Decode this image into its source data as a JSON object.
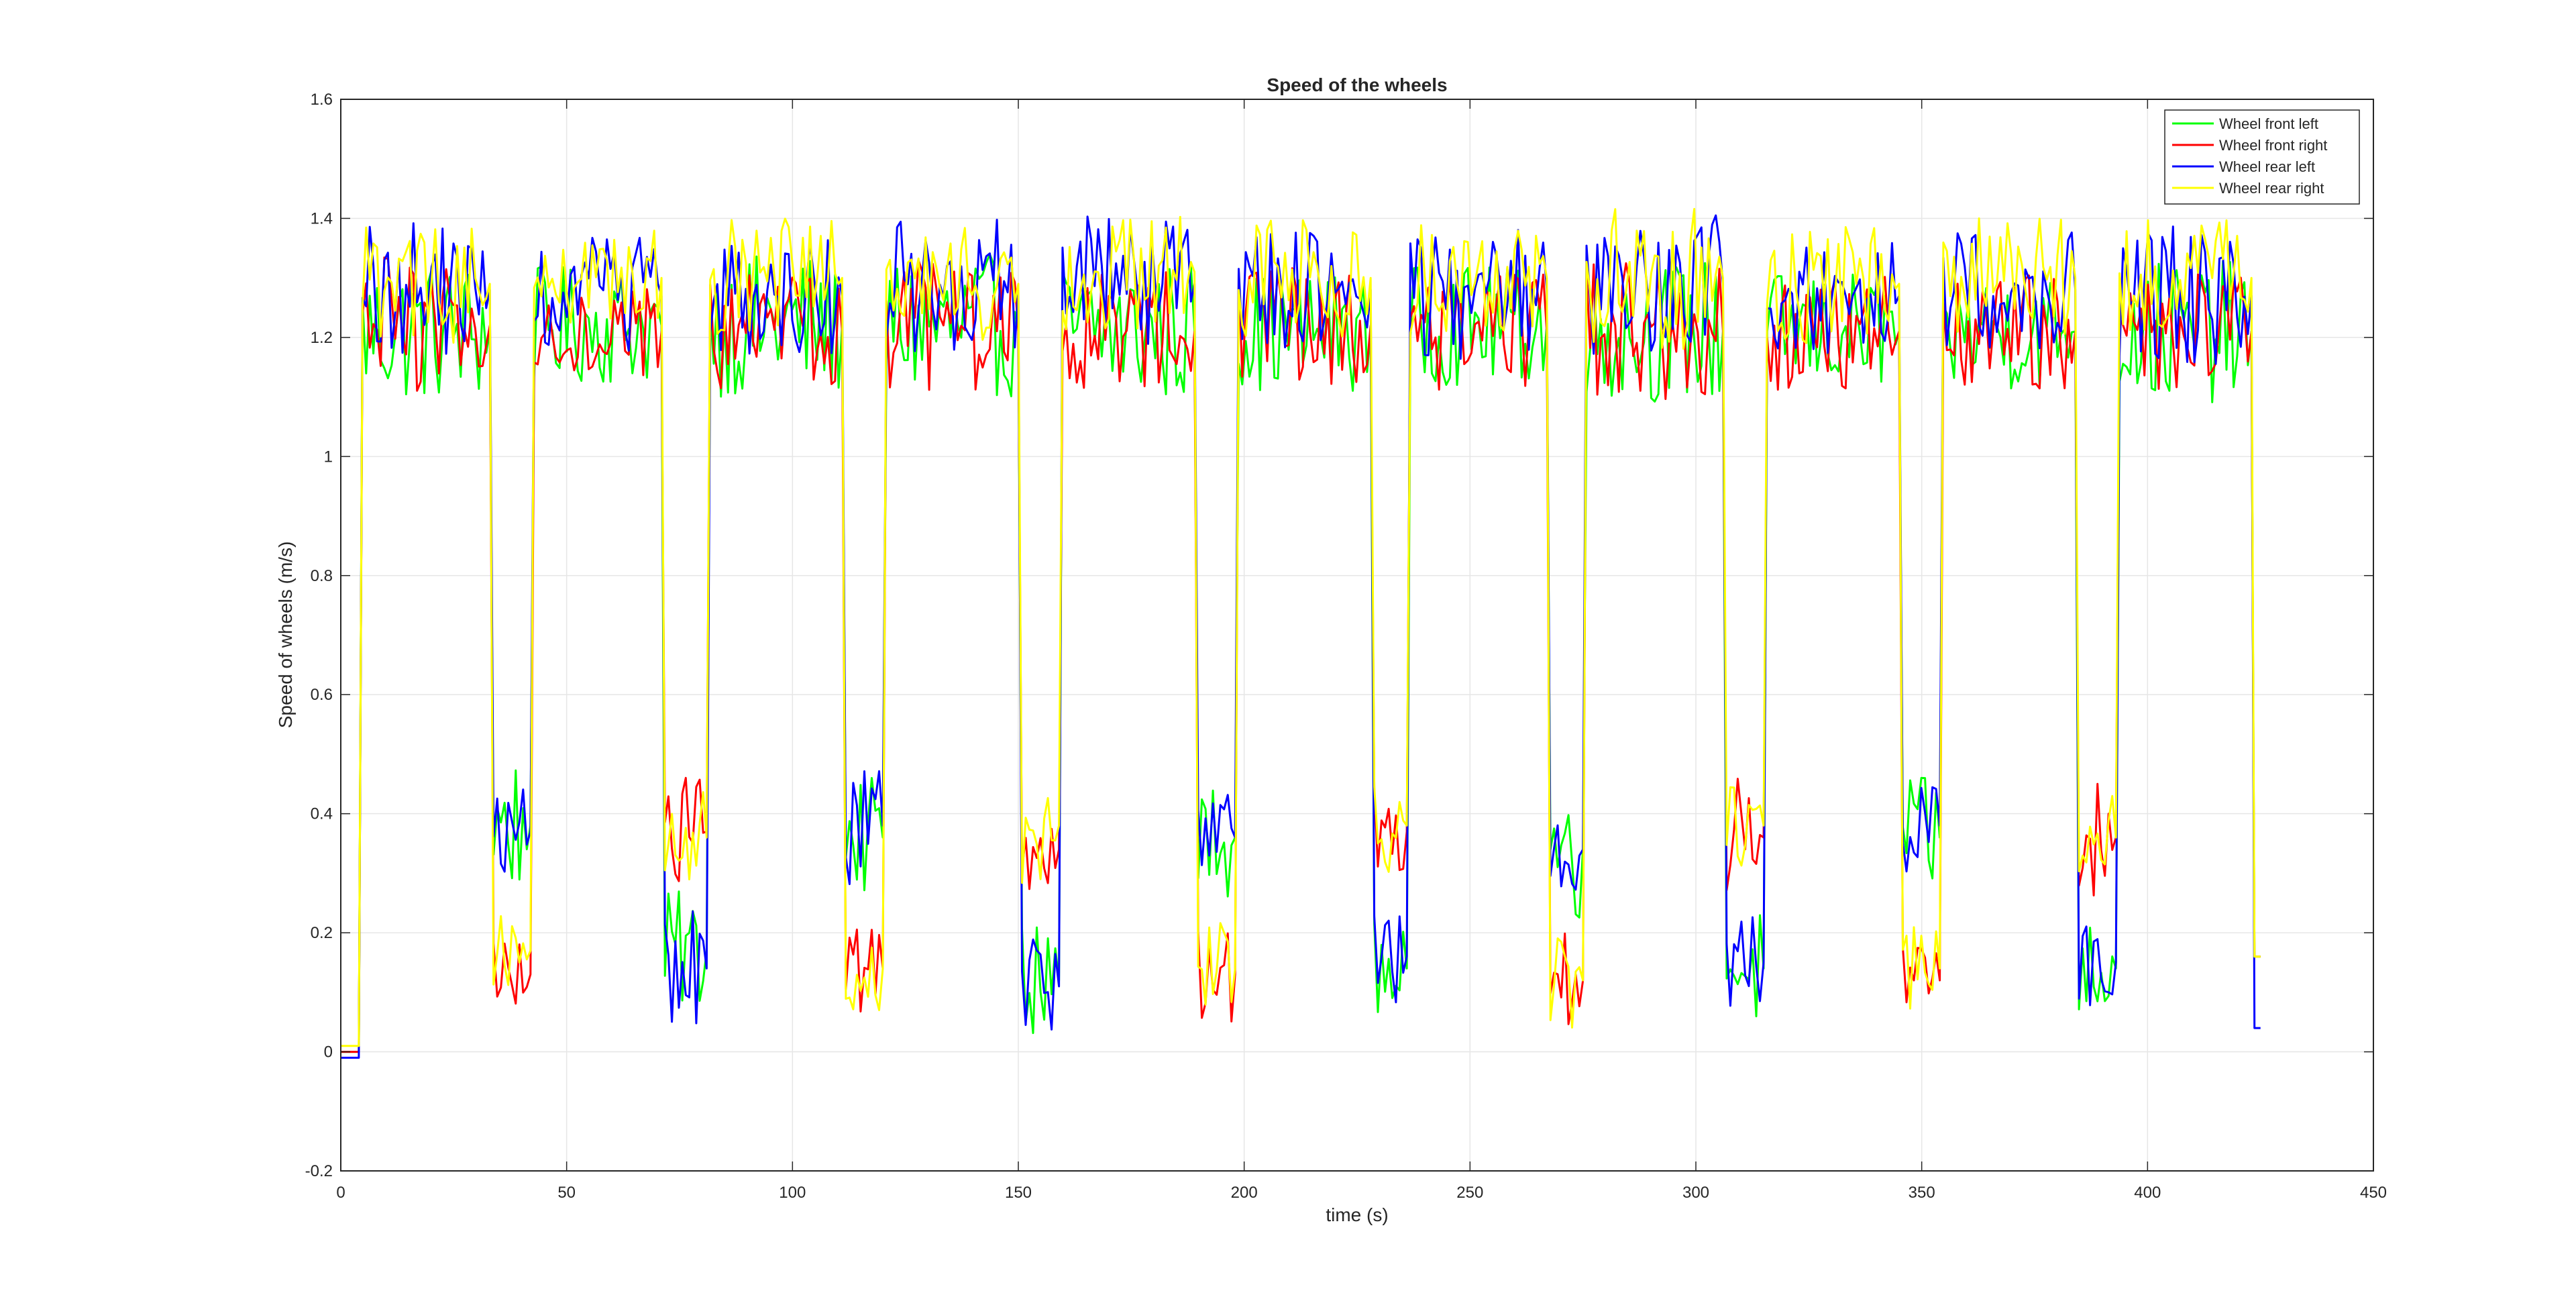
{
  "figure": {
    "background": "#ffffff"
  },
  "chart_data": {
    "type": "line",
    "title": "Speed of the wheels",
    "xlabel": "time (s)",
    "ylabel": "Speed of wheels (m/s)",
    "xlim": [
      0,
      450
    ],
    "ylim": [
      -0.2,
      1.6
    ],
    "xticks": [
      0,
      50,
      100,
      150,
      200,
      250,
      300,
      350,
      400,
      450
    ],
    "yticks": [
      -0.2,
      0,
      0.2,
      0.4,
      0.6,
      0.8,
      1,
      1.2,
      1.4,
      1.6
    ],
    "xtick_labels": [
      "0",
      "50",
      "100",
      "150",
      "200",
      "250",
      "300",
      "350",
      "400",
      "450"
    ],
    "ytick_labels": [
      "-0.2",
      "0",
      "0.2",
      "0.4",
      "0.6",
      "0.8",
      "1",
      "1.2",
      "1.4",
      "1.6"
    ],
    "grid": true,
    "legend_position": "top-right",
    "series": [
      {
        "name": "Wheel front left",
        "color": "#00ff00",
        "segments": [
          {
            "t0": 0,
            "t1": 4,
            "mean": 0.0,
            "amp": 0.0
          },
          {
            "t0": 4,
            "t1": 33,
            "mean": 1.21,
            "amp": 0.12
          },
          {
            "t0": 33,
            "t1": 42,
            "mean": 0.38,
            "amp": 0.12
          },
          {
            "t0": 42,
            "t1": 71,
            "mean": 1.22,
            "amp": 0.1
          },
          {
            "t0": 71,
            "t1": 81,
            "mean": 0.17,
            "amp": 0.1
          },
          {
            "t0": 81,
            "t1": 111,
            "mean": 1.22,
            "amp": 0.12
          },
          {
            "t0": 111,
            "t1": 120,
            "mean": 0.36,
            "amp": 0.1
          },
          {
            "t0": 120,
            "t1": 150,
            "mean": 1.22,
            "amp": 0.12
          },
          {
            "t0": 150,
            "t1": 159,
            "mean": 0.12,
            "amp": 0.1
          },
          {
            "t0": 159,
            "t1": 189,
            "mean": 1.21,
            "amp": 0.12
          },
          {
            "t0": 189,
            "t1": 198,
            "mean": 0.36,
            "amp": 0.1
          },
          {
            "t0": 198,
            "t1": 228,
            "mean": 1.21,
            "amp": 0.1
          },
          {
            "t0": 228,
            "t1": 236,
            "mean": 0.14,
            "amp": 0.08
          },
          {
            "t0": 236,
            "t1": 267,
            "mean": 1.22,
            "amp": 0.1
          },
          {
            "t0": 267,
            "t1": 275,
            "mean": 0.34,
            "amp": 0.12
          },
          {
            "t0": 275,
            "t1": 306,
            "mean": 1.21,
            "amp": 0.12
          },
          {
            "t0": 306,
            "t1": 315,
            "mean": 0.14,
            "amp": 0.1
          },
          {
            "t0": 315,
            "t1": 345,
            "mean": 1.21,
            "amp": 0.1
          },
          {
            "t0": 345,
            "t1": 354,
            "mean": 0.36,
            "amp": 0.1
          },
          {
            "t0": 354,
            "t1": 384,
            "mean": 1.21,
            "amp": 0.1
          },
          {
            "t0": 384,
            "t1": 393,
            "mean": 0.14,
            "amp": 0.08
          },
          {
            "t0": 393,
            "t1": 423,
            "mean": 1.21,
            "amp": 0.12
          },
          {
            "t0": 423,
            "t1": 425,
            "mean": 0.16,
            "amp": 0.0
          }
        ]
      },
      {
        "name": "Wheel front right",
        "color": "#ff0000",
        "segments": [
          {
            "t0": 0,
            "t1": 4,
            "mean": 0.0,
            "amp": 0.0
          },
          {
            "t0": 4,
            "t1": 33,
            "mean": 1.22,
            "amp": 0.12
          },
          {
            "t0": 33,
            "t1": 42,
            "mean": 0.13,
            "amp": 0.07
          },
          {
            "t0": 42,
            "t1": 71,
            "mean": 1.21,
            "amp": 0.08
          },
          {
            "t0": 71,
            "t1": 81,
            "mean": 0.37,
            "amp": 0.1
          },
          {
            "t0": 81,
            "t1": 111,
            "mean": 1.21,
            "amp": 0.1
          },
          {
            "t0": 111,
            "t1": 120,
            "mean": 0.14,
            "amp": 0.08
          },
          {
            "t0": 120,
            "t1": 150,
            "mean": 1.21,
            "amp": 0.12
          },
          {
            "t0": 150,
            "t1": 159,
            "mean": 0.34,
            "amp": 0.08
          },
          {
            "t0": 159,
            "t1": 189,
            "mean": 1.21,
            "amp": 0.1
          },
          {
            "t0": 189,
            "t1": 198,
            "mean": 0.13,
            "amp": 0.08
          },
          {
            "t0": 198,
            "t1": 228,
            "mean": 1.22,
            "amp": 0.1
          },
          {
            "t0": 228,
            "t1": 236,
            "mean": 0.37,
            "amp": 0.08
          },
          {
            "t0": 236,
            "t1": 267,
            "mean": 1.21,
            "amp": 0.1
          },
          {
            "t0": 267,
            "t1": 275,
            "mean": 0.12,
            "amp": 0.08
          },
          {
            "t0": 275,
            "t1": 306,
            "mean": 1.21,
            "amp": 0.12
          },
          {
            "t0": 306,
            "t1": 315,
            "mean": 0.36,
            "amp": 0.1
          },
          {
            "t0": 315,
            "t1": 345,
            "mean": 1.21,
            "amp": 0.1
          },
          {
            "t0": 345,
            "t1": 354,
            "mean": 0.12,
            "amp": 0.06
          },
          {
            "t0": 354,
            "t1": 384,
            "mean": 1.21,
            "amp": 0.1
          },
          {
            "t0": 384,
            "t1": 393,
            "mean": 0.36,
            "amp": 0.1
          },
          {
            "t0": 393,
            "t1": 423,
            "mean": 1.21,
            "amp": 0.1
          },
          {
            "t0": 423,
            "t1": 425,
            "mean": 0.16,
            "amp": 0.0
          }
        ]
      },
      {
        "name": "Wheel rear left",
        "color": "#0000ff",
        "segments": [
          {
            "t0": 0,
            "t1": 4,
            "mean": -0.01,
            "amp": 0.0
          },
          {
            "t0": 4,
            "t1": 33,
            "mean": 1.28,
            "amp": 0.12
          },
          {
            "t0": 33,
            "t1": 42,
            "mean": 0.37,
            "amp": 0.08
          },
          {
            "t0": 42,
            "t1": 71,
            "mean": 1.27,
            "amp": 0.1
          },
          {
            "t0": 71,
            "t1": 81,
            "mean": 0.14,
            "amp": 0.1
          },
          {
            "t0": 81,
            "t1": 111,
            "mean": 1.27,
            "amp": 0.1
          },
          {
            "t0": 111,
            "t1": 120,
            "mean": 0.38,
            "amp": 0.1
          },
          {
            "t0": 120,
            "t1": 150,
            "mean": 1.28,
            "amp": 0.12
          },
          {
            "t0": 150,
            "t1": 159,
            "mean": 0.11,
            "amp": 0.08
          },
          {
            "t0": 159,
            "t1": 189,
            "mean": 1.29,
            "amp": 0.12
          },
          {
            "t0": 189,
            "t1": 198,
            "mean": 0.36,
            "amp": 0.1
          },
          {
            "t0": 198,
            "t1": 228,
            "mean": 1.28,
            "amp": 0.1
          },
          {
            "t0": 228,
            "t1": 236,
            "mean": 0.16,
            "amp": 0.08
          },
          {
            "t0": 236,
            "t1": 267,
            "mean": 1.28,
            "amp": 0.12
          },
          {
            "t0": 267,
            "t1": 275,
            "mean": 0.34,
            "amp": 0.08
          },
          {
            "t0": 275,
            "t1": 306,
            "mean": 1.29,
            "amp": 0.12
          },
          {
            "t0": 306,
            "t1": 315,
            "mean": 0.15,
            "amp": 0.08
          },
          {
            "t0": 315,
            "t1": 345,
            "mean": 1.27,
            "amp": 0.1
          },
          {
            "t0": 345,
            "t1": 354,
            "mean": 0.38,
            "amp": 0.08
          },
          {
            "t0": 354,
            "t1": 384,
            "mean": 1.28,
            "amp": 0.1
          },
          {
            "t0": 384,
            "t1": 393,
            "mean": 0.15,
            "amp": 0.08
          },
          {
            "t0": 393,
            "t1": 423,
            "mean": 1.27,
            "amp": 0.12
          },
          {
            "t0": 423,
            "t1": 425,
            "mean": 0.04,
            "amp": 0.0
          }
        ]
      },
      {
        "name": "Wheel rear right",
        "color": "#ffff00",
        "segments": [
          {
            "t0": 0,
            "t1": 4,
            "mean": 0.01,
            "amp": 0.0
          },
          {
            "t0": 4,
            "t1": 33,
            "mean": 1.29,
            "amp": 0.1
          },
          {
            "t0": 33,
            "t1": 42,
            "mean": 0.17,
            "amp": 0.06
          },
          {
            "t0": 42,
            "t1": 71,
            "mean": 1.3,
            "amp": 0.08
          },
          {
            "t0": 71,
            "t1": 81,
            "mean": 0.36,
            "amp": 0.08
          },
          {
            "t0": 81,
            "t1": 111,
            "mean": 1.3,
            "amp": 0.1
          },
          {
            "t0": 111,
            "t1": 120,
            "mean": 0.14,
            "amp": 0.08
          },
          {
            "t0": 120,
            "t1": 150,
            "mean": 1.29,
            "amp": 0.1
          },
          {
            "t0": 150,
            "t1": 159,
            "mean": 0.38,
            "amp": 0.1
          },
          {
            "t0": 159,
            "t1": 189,
            "mean": 1.31,
            "amp": 0.1
          },
          {
            "t0": 189,
            "t1": 198,
            "mean": 0.14,
            "amp": 0.08
          },
          {
            "t0": 198,
            "t1": 228,
            "mean": 1.3,
            "amp": 0.1
          },
          {
            "t0": 228,
            "t1": 236,
            "mean": 0.38,
            "amp": 0.08
          },
          {
            "t0": 236,
            "t1": 267,
            "mean": 1.3,
            "amp": 0.1
          },
          {
            "t0": 267,
            "t1": 275,
            "mean": 0.12,
            "amp": 0.08
          },
          {
            "t0": 275,
            "t1": 306,
            "mean": 1.3,
            "amp": 0.12
          },
          {
            "t0": 306,
            "t1": 315,
            "mean": 0.38,
            "amp": 0.1
          },
          {
            "t0": 315,
            "t1": 345,
            "mean": 1.29,
            "amp": 0.1
          },
          {
            "t0": 345,
            "t1": 354,
            "mean": 0.14,
            "amp": 0.08
          },
          {
            "t0": 354,
            "t1": 384,
            "mean": 1.3,
            "amp": 0.1
          },
          {
            "t0": 384,
            "t1": 393,
            "mean": 0.36,
            "amp": 0.08
          },
          {
            "t0": 393,
            "t1": 423,
            "mean": 1.3,
            "amp": 0.1
          },
          {
            "t0": 423,
            "t1": 425,
            "mean": 0.16,
            "amp": 0.0
          }
        ]
      }
    ]
  }
}
